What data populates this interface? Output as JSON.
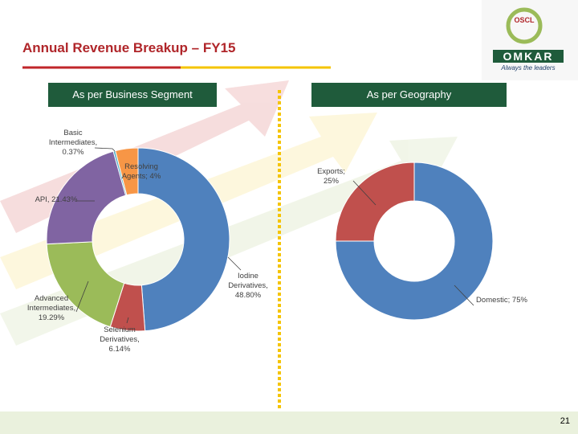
{
  "title": "Annual Revenue Breakup – FY15",
  "page_number": 21,
  "logo": {
    "emblem": "OSCL",
    "name": "OMKAR",
    "tagline": "Always the leaders"
  },
  "chart_data": [
    {
      "type": "donut",
      "title": "As per Business Segment",
      "values": [
        48.8,
        6.14,
        19.29,
        21.43,
        0.37,
        4
      ],
      "value_labels": [
        "Iodine Derivatives, 48.80%",
        "Selenium Derivatives, 6.14%",
        "Advanced Intermediates, 19.29%",
        "API, 21.43%",
        "Basic Intermediates, 0.37%",
        "Resolving Agents; 4%"
      ],
      "colors": [
        "#4f81bd",
        "#c0504d",
        "#9bbb59",
        "#8064a2",
        "#4bacc6",
        "#f79646"
      ]
    },
    {
      "type": "donut",
      "title": "As per Geography",
      "values": [
        75,
        25
      ],
      "value_labels": [
        "Domestic; 75%",
        "Exports; 25%"
      ],
      "colors": [
        "#4f81bd",
        "#c0504d"
      ]
    }
  ]
}
